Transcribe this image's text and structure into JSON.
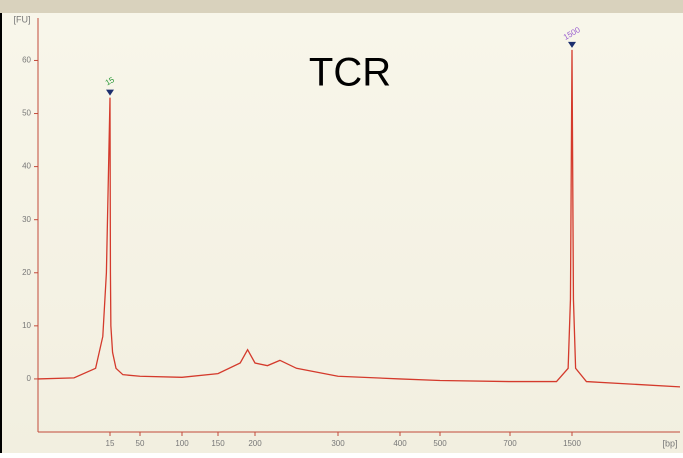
{
  "chart_data": {
    "type": "line",
    "title": "TCR",
    "x_label": "[bp]",
    "y_label": "[FU]",
    "xlim": [
      5,
      3000
    ],
    "xticks": [
      15,
      50,
      100,
      150,
      200,
      300,
      400,
      500,
      700,
      1500
    ],
    "ylim": [
      -10,
      68
    ],
    "yticks": [
      0,
      10,
      20,
      30,
      40,
      50,
      60
    ],
    "series": [
      {
        "color": "#d43a2c",
        "x": [
          5,
          10,
          13,
          14,
          14.5,
          15,
          15.5,
          16,
          18,
          22,
          30,
          50,
          100,
          150,
          180,
          190,
          200,
          215,
          230,
          250,
          300,
          400,
          500,
          700,
          1300,
          1450,
          1480,
          1500,
          1520,
          1550,
          1700,
          3000
        ],
        "values": [
          0,
          0.2,
          2,
          8,
          20,
          53,
          20,
          10,
          5,
          2,
          0.8,
          0.5,
          0.3,
          1,
          3,
          5.5,
          3,
          2.5,
          3.5,
          2,
          0.5,
          0,
          -0.3,
          -0.5,
          -0.5,
          2,
          15,
          62,
          15,
          2,
          -0.5,
          -1.5
        ]
      }
    ],
    "peaks": [
      {
        "x": 15,
        "value": 53,
        "color": "#2e9a3a"
      },
      {
        "x": 1500,
        "value": 62,
        "color": "#9a5fd0"
      }
    ]
  }
}
